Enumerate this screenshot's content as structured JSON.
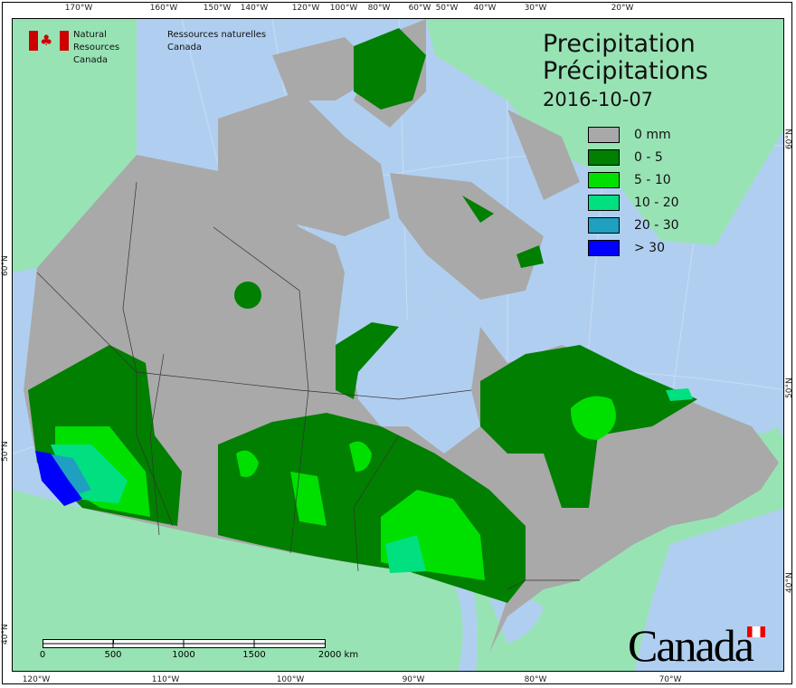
{
  "header": {
    "org_en": [
      "Natural Resources",
      "Canada"
    ],
    "org_fr": [
      "Ressources naturelles",
      "Canada"
    ]
  },
  "title": {
    "en": "Precipitation",
    "fr": "Précipitations",
    "date": "2016-10-07"
  },
  "legend": [
    {
      "label": "0 mm",
      "color": "#a9a9a9"
    },
    {
      "label": "0 - 5",
      "color": "#007f00"
    },
    {
      "label": "5 - 10",
      "color": "#00e000"
    },
    {
      "label": "10 - 20",
      "color": "#00e080"
    },
    {
      "label": "20 - 30",
      "color": "#20a0c0"
    },
    {
      "label": "> 30",
      "color": "#0000ff"
    }
  ],
  "axes": {
    "top": [
      "170°W",
      "160°W",
      "150°W",
      "140°W",
      "120°W",
      "100°W",
      "80°W",
      "60°W",
      "50°W",
      "40°W",
      "30°W",
      "20°W"
    ],
    "bottom": [
      "120°W",
      "110°W",
      "100°W",
      "90°W",
      "80°W",
      "70°W"
    ],
    "left": [
      "60°N",
      "50°N",
      "40°N"
    ],
    "right": [
      "60°N",
      "50°N",
      "40°N"
    ]
  },
  "scale_bar": {
    "labels": [
      "0",
      "500",
      "1000",
      "1500",
      "2000 km"
    ]
  },
  "wordmark": "Canada",
  "colors": {
    "water": "#b0cff0",
    "foreign_land": "#98e3b4",
    "canada_land": "#a9a9a9"
  }
}
